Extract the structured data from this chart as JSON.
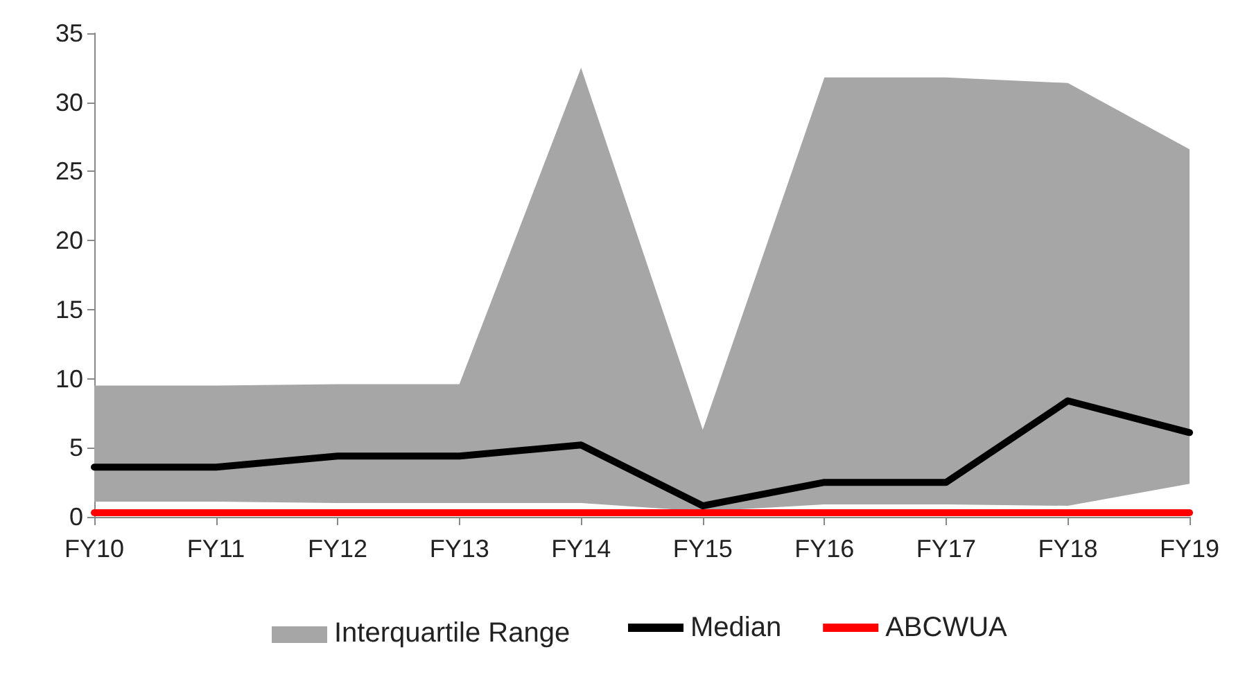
{
  "chart_data": {
    "type": "line",
    "categories": [
      "FY10",
      "FY11",
      "FY12",
      "FY13",
      "FY14",
      "FY15",
      "FY16",
      "FY17",
      "FY18",
      "FY19"
    ],
    "series": [
      {
        "name": "Median",
        "type": "line",
        "color": "#000000",
        "values": [
          3.6,
          3.6,
          4.4,
          4.4,
          5.2,
          0.8,
          2.5,
          2.5,
          8.4,
          6.1
        ],
        "lower": [
          1.1,
          1.1,
          1.0,
          1.0,
          1.0,
          0.4,
          0.9,
          0.9,
          0.8,
          2.4
        ],
        "upper": [
          9.5,
          9.5,
          9.6,
          9.6,
          32.5,
          6.3,
          31.8,
          31.8,
          31.4,
          26.6
        ]
      },
      {
        "name": "ABCWUA",
        "color": "#ff0000",
        "values": [
          0.3,
          0.3,
          0.3,
          0.3,
          0.3,
          0.3,
          0.3,
          0.3,
          0.3,
          0.3
        ]
      }
    ],
    "annotations": [
      "Interquartile Range"
    ],
    "ylim": [
      0,
      35
    ],
    "yticks": [
      0,
      5,
      10,
      15,
      20,
      25,
      30,
      35
    ],
    "grid": false,
    "legend": "bottom",
    "marker": "none",
    "line_style": "solid"
  }
}
